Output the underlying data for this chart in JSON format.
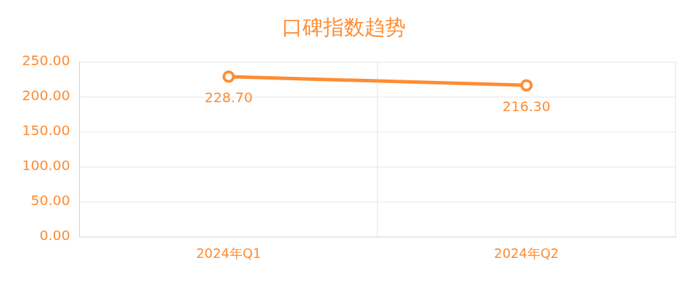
{
  "chart_data": {
    "type": "line",
    "title": "口碑指数趋势",
    "categories": [
      "2024年Q1",
      "2024年Q2"
    ],
    "series": [
      {
        "color": "#ff8c33",
        "values": [
          228.7,
          216.3
        ],
        "value_labels": [
          "228.70",
          "216.30"
        ]
      }
    ],
    "ylim": [
      0,
      250
    ],
    "yticks": [
      {
        "value": 0,
        "label": "0.00"
      },
      {
        "value": 50,
        "label": "50.00"
      },
      {
        "value": 100,
        "label": "100.00"
      },
      {
        "value": 150,
        "label": "150.00"
      },
      {
        "value": 200,
        "label": "200.00"
      },
      {
        "value": 250,
        "label": "250.00"
      }
    ],
    "grid": true,
    "legend": false,
    "marker": "circle",
    "line_style": "solid"
  }
}
